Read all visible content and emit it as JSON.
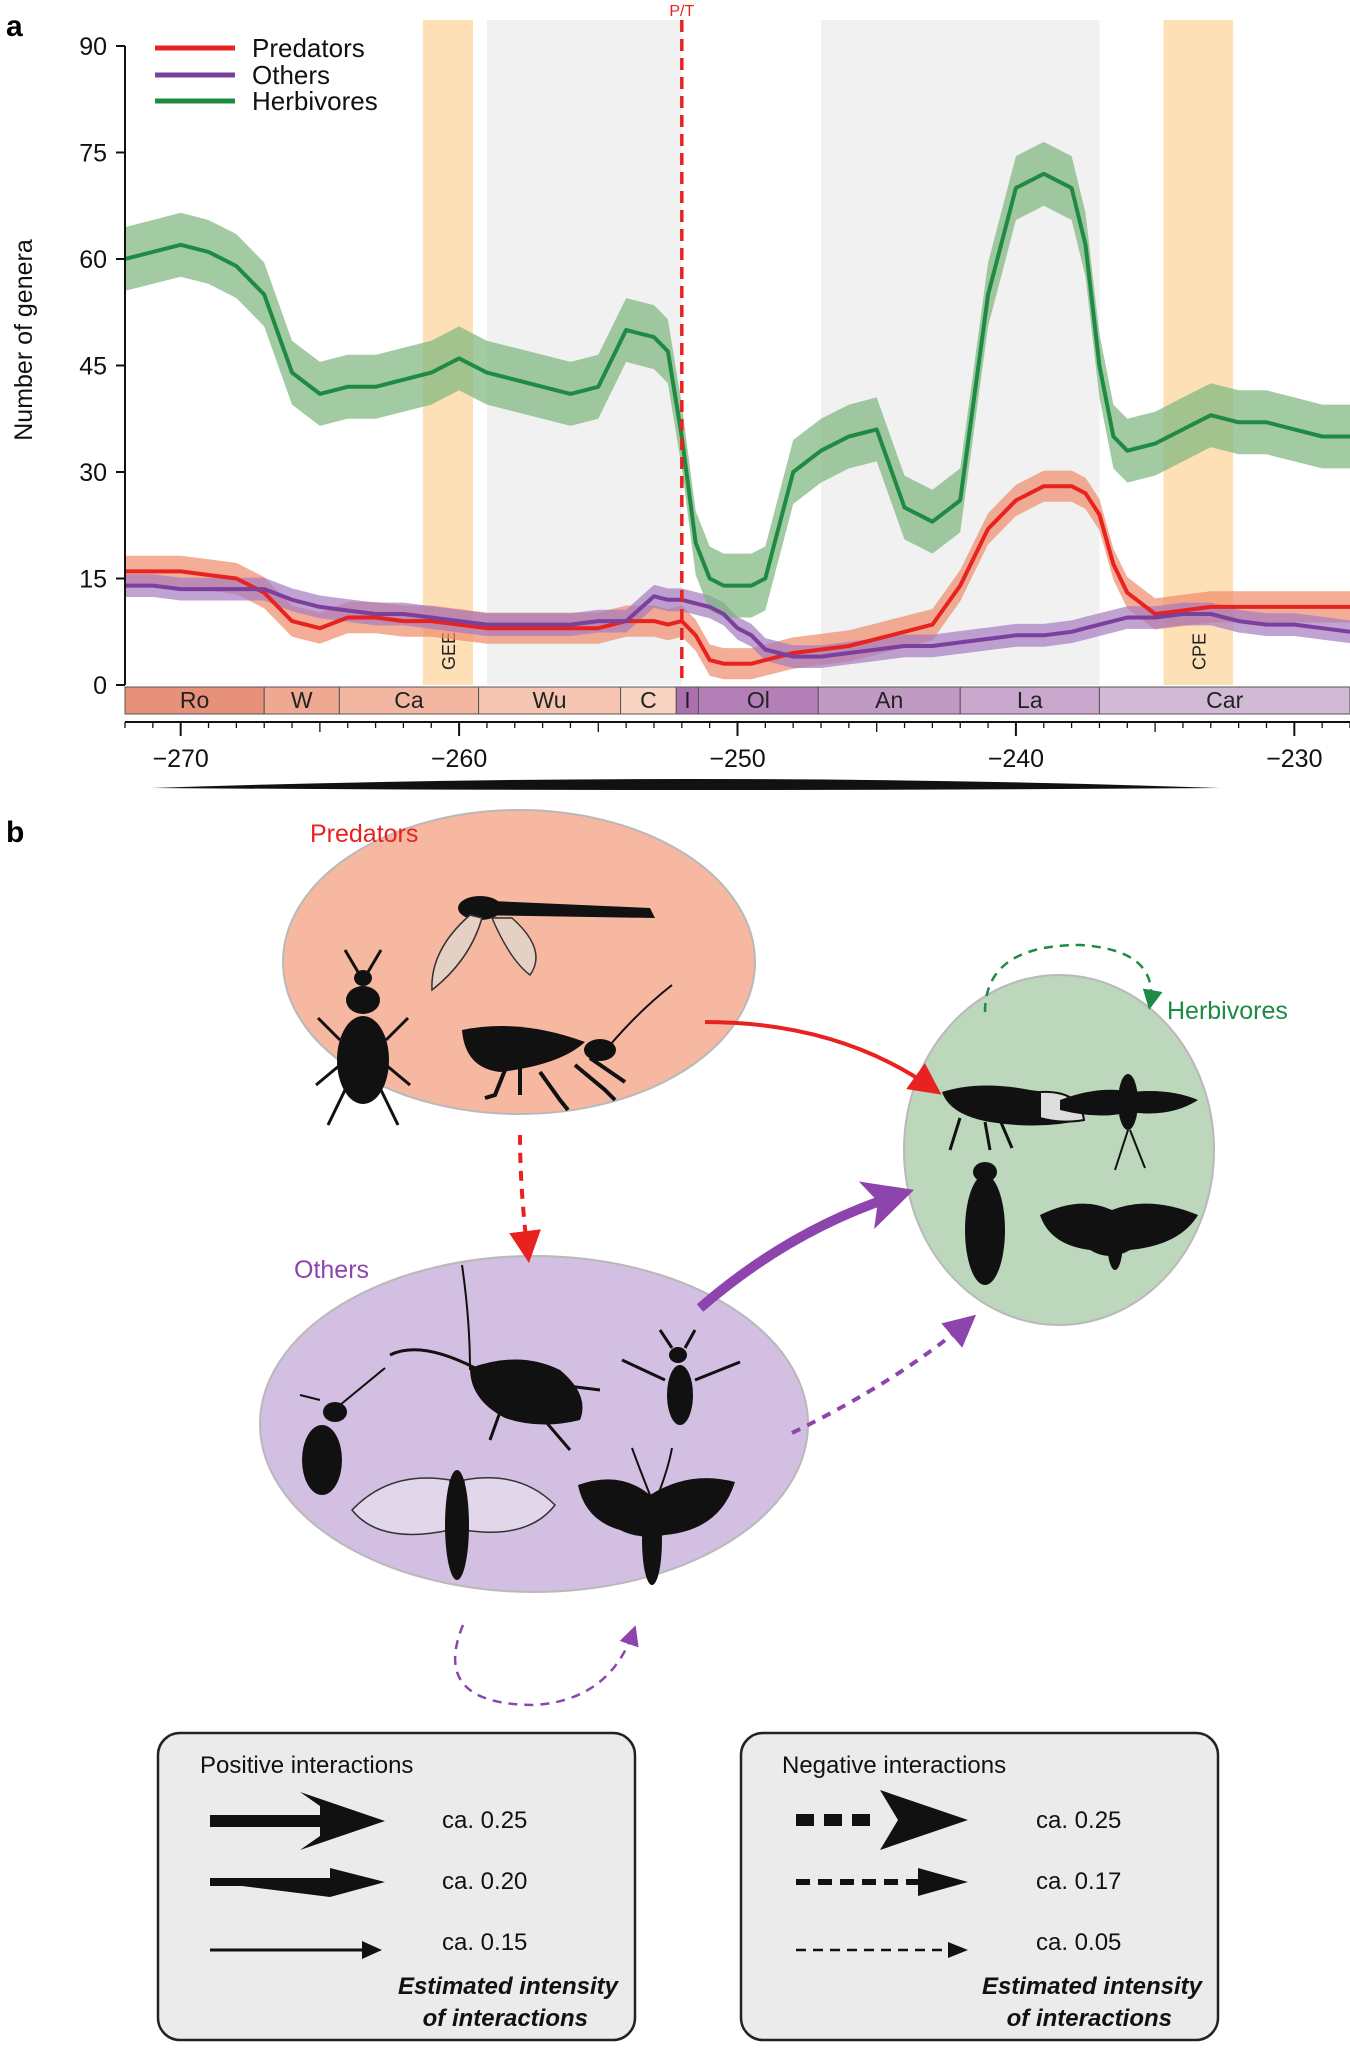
{
  "panel_a": {
    "letter": "a"
  },
  "panel_b": {
    "letter": "b"
  },
  "chart_data": {
    "type": "line",
    "title": "",
    "xlabel": "",
    "ylabel": "Number of genera",
    "xlim": [
      -272,
      -228
    ],
    "ylim": [
      0,
      90
    ],
    "x_ticks": [
      -270,
      -260,
      -250,
      -240,
      -230
    ],
    "x_tick_labels": [
      "−270",
      "−260",
      "−250",
      "−240",
      "−230"
    ],
    "y_ticks": [
      0,
      15,
      30,
      45,
      60,
      75,
      90
    ],
    "grid": false,
    "legend": "top-left",
    "x": [
      -272,
      -271,
      -270,
      -269,
      -268,
      -267,
      -266,
      -265,
      -264,
      -263,
      -262,
      -261,
      -260,
      -259,
      -258,
      -257,
      -256,
      -255,
      -254,
      -253,
      -252.5,
      -252,
      -251.5,
      -251,
      -250.5,
      -250,
      -249.5,
      -249,
      -248,
      -247,
      -246,
      -245,
      -244,
      -243,
      -242,
      -241,
      -240,
      -239,
      -238,
      -237.5,
      -237,
      -236.5,
      -236,
      -235,
      -234,
      -233,
      -232,
      -231,
      -230,
      -229,
      -228
    ],
    "series": [
      {
        "name": "Predators",
        "color": "#e8231f",
        "band_color": "#f08a6a",
        "values": [
          16,
          16,
          16,
          15.5,
          15,
          13,
          9,
          8,
          9.5,
          9.5,
          9,
          9,
          8.5,
          8,
          8,
          8,
          8,
          8,
          9,
          9,
          8.5,
          9,
          7,
          3.5,
          3,
          3,
          3,
          3.5,
          4.5,
          5,
          5.5,
          6.5,
          7.5,
          8.5,
          14,
          22,
          26,
          28,
          28,
          27,
          24,
          17,
          13,
          10,
          10.5,
          11,
          11,
          11,
          11,
          11,
          11
        ]
      },
      {
        "name": "Others",
        "color": "#7b3f9e",
        "band_color": "#a57ac0",
        "values": [
          14,
          14,
          13.5,
          13.5,
          13.5,
          13.5,
          12,
          11,
          10.5,
          10,
          10,
          9.5,
          9,
          8.5,
          8.5,
          8.5,
          8.5,
          9,
          9,
          12.5,
          12,
          12,
          11.5,
          11,
          10,
          8,
          7,
          5,
          4,
          4,
          4.5,
          5,
          5.5,
          5.5,
          6,
          6.5,
          7,
          7,
          7.5,
          8,
          8.5,
          9,
          9.5,
          9.5,
          10,
          10,
          9,
          8.5,
          8.5,
          8,
          7.5
        ]
      },
      {
        "name": "Herbivores",
        "color": "#1f8a44",
        "band_color": "#7bb57e",
        "values": [
          60,
          61,
          62,
          61,
          59,
          55,
          44,
          41,
          42,
          42,
          43,
          44,
          46,
          44,
          43,
          42,
          41,
          42,
          50,
          49,
          47,
          35,
          20,
          15,
          14,
          14,
          14,
          15,
          30,
          33,
          35,
          36,
          25,
          23,
          26,
          55,
          70,
          72,
          70,
          62,
          45,
          35,
          33,
          34,
          36,
          38,
          37,
          37,
          36,
          35,
          35
        ]
      }
    ],
    "shaded_intervals": [
      {
        "label": "GEE",
        "start": -261.3,
        "end": -259.5,
        "color": "#fde0b6"
      },
      {
        "label": "",
        "start": -259,
        "end": -252,
        "color": "#f1f1f1"
      },
      {
        "label": "",
        "start": -247,
        "end": -237,
        "color": "#f1f1f1"
      },
      {
        "label": "CPE",
        "start": -234.7,
        "end": -232.2,
        "color": "#fde0b6"
      }
    ],
    "annotations": [
      {
        "label": "P/T",
        "x": -252,
        "color": "#e8231f",
        "style": "dashed"
      }
    ],
    "stages": [
      {
        "label": "Ro",
        "start": -272,
        "end": -267,
        "color": "#e7917a"
      },
      {
        "label": "W",
        "start": -267,
        "end": -264.3,
        "color": "#efa891"
      },
      {
        "label": "Ca",
        "start": -264.3,
        "end": -259.3,
        "color": "#f2b6a1"
      },
      {
        "label": "Wu",
        "start": -259.3,
        "end": -254.2,
        "color": "#f5c5b1"
      },
      {
        "label": "C",
        "start": -254.2,
        "end": -252.2,
        "color": "#f8d3c2"
      },
      {
        "label": "I",
        "start": -252.2,
        "end": -251.4,
        "color": "#ac6fad"
      },
      {
        "label": "Ol",
        "start": -251.4,
        "end": -247.1,
        "color": "#b47fb6"
      },
      {
        "label": "An",
        "start": -247.1,
        "end": -242,
        "color": "#c09ac3"
      },
      {
        "label": "La",
        "start": -242,
        "end": -237,
        "color": "#caa8cd"
      },
      {
        "label": "Car",
        "start": -237,
        "end": -228,
        "color": "#d2b9d6"
      }
    ]
  },
  "diagram": {
    "groups": [
      {
        "name": "Predators",
        "color": "#e8231f",
        "fill": "#f6b8a0"
      },
      {
        "name": "Others",
        "color": "#8e44ad",
        "fill": "#d3bfe1"
      },
      {
        "name": "Herbivores",
        "color": "#1f8a44",
        "fill": "#bcd7bc"
      }
    ],
    "key_positive": {
      "title": "Positive interactions",
      "rows": [
        "ca. 0.25",
        "ca. 0.20",
        "ca. 0.15"
      ],
      "note_line1": "Estimated intensity",
      "note_line2": "of interactions"
    },
    "key_negative": {
      "title": "Negative interactions",
      "rows": [
        "ca. 0.25",
        "ca. 0.17",
        "ca. 0.05"
      ],
      "note_line1": "Estimated intensity",
      "note_line2": "of interactions"
    }
  }
}
